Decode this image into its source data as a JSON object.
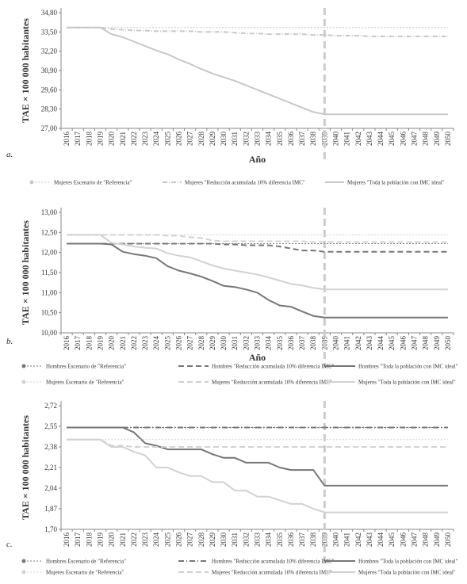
{
  "chart_data": [
    {
      "type": "line",
      "panel_label": "a.",
      "xlabel": "Año",
      "ylabel": "TAE × 100 000 habitantes",
      "ylim": [
        27.0,
        34.8
      ],
      "yticks": [
        "34,80",
        "33,50",
        "32,20",
        "30,90",
        "29,60",
        "28,30",
        "27,00"
      ],
      "ytick_values": [
        34.8,
        33.5,
        32.2,
        30.9,
        29.6,
        28.3,
        27.0
      ],
      "x": [
        "2016",
        "2017",
        "2018",
        "2019",
        "2020",
        "2021",
        "2022",
        "2023",
        "2024",
        "2025",
        "2026",
        "2027",
        "2028",
        "2029",
        "2030",
        "2031",
        "2032",
        "2033",
        "2034",
        "2035",
        "2036",
        "2037",
        "2038",
        "2039",
        "2040",
        "2041",
        "2042",
        "2043",
        "2044",
        "2045",
        "2046",
        "2047",
        "2048",
        "2049",
        "2050"
      ],
      "marker_year": "2039",
      "legend_position": "bottom",
      "series": [
        {
          "name": "Mujeres Escenario de \"Referencia\"",
          "color": "#c8c8c8",
          "dash": "2,2",
          "width": 1,
          "values": [
            33.8,
            33.8,
            33.8,
            33.8,
            33.8,
            33.8,
            33.8,
            33.8,
            33.8,
            33.8,
            33.8,
            33.8,
            33.8,
            33.8,
            33.8,
            33.8,
            33.8,
            33.8,
            33.8,
            33.8,
            33.8,
            33.8,
            33.8,
            33.8,
            33.8,
            33.8,
            33.8,
            33.8,
            33.8,
            33.8,
            33.8,
            33.8,
            33.8,
            33.8,
            33.8
          ]
        },
        {
          "name": "Mujeres \"Reducción acumulada 10% diferencia IMC\"",
          "color": "#c8c8c8",
          "dash": "6,2,1,2",
          "width": 2,
          "values": [
            33.8,
            33.8,
            33.8,
            33.8,
            33.7,
            33.65,
            33.6,
            33.6,
            33.55,
            33.55,
            33.55,
            33.55,
            33.5,
            33.5,
            33.5,
            33.45,
            33.4,
            33.4,
            33.35,
            33.35,
            33.35,
            33.35,
            33.3,
            33.3,
            33.25,
            33.25,
            33.25,
            33.2,
            33.2,
            33.2,
            33.2,
            33.2,
            33.2,
            33.2,
            33.2
          ]
        },
        {
          "name": "Mujeres \"Toda la población con IMC ideal\"",
          "color": "#c8c8c8",
          "dash": "",
          "width": 2,
          "values": [
            33.8,
            33.8,
            33.8,
            33.8,
            33.35,
            33.15,
            32.85,
            32.55,
            32.25,
            32.0,
            31.65,
            31.35,
            31.0,
            30.7,
            30.45,
            30.2,
            29.9,
            29.6,
            29.3,
            29.0,
            28.7,
            28.4,
            28.1,
            27.95,
            27.95,
            27.95,
            27.95,
            27.95,
            27.95,
            27.95,
            27.95,
            27.95,
            27.95,
            27.95,
            27.95
          ]
        }
      ]
    },
    {
      "type": "line",
      "panel_label": "b.",
      "xlabel": "Año",
      "ylabel": "TAE × 100 000 habitantes",
      "ylim": [
        10.0,
        13.0
      ],
      "yticks": [
        "13,00",
        "12,50",
        "12,00",
        "11,50",
        "11,00",
        "10,50",
        "10,00"
      ],
      "ytick_values": [
        13.0,
        12.5,
        12.0,
        11.5,
        11.0,
        10.5,
        10.0
      ],
      "x": [
        "2016",
        "2017",
        "2018",
        "2019",
        "2020",
        "2021",
        "2022",
        "2023",
        "2024",
        "2025",
        "2026",
        "2027",
        "2028",
        "2029",
        "2030",
        "2031",
        "2032",
        "2033",
        "2034",
        "2035",
        "2036",
        "2037",
        "2038",
        "2039",
        "2040",
        "2041",
        "2042",
        "2043",
        "2044",
        "2045",
        "2046",
        "2047",
        "2048",
        "2049",
        "2050"
      ],
      "marker_year": "2039",
      "legend_position": "bottom",
      "series": [
        {
          "name": "Hombres Escenario de \"Referencia\"",
          "color": "#777777",
          "dash": "2,2",
          "width": 1,
          "values": [
            12.22,
            12.22,
            12.22,
            12.22,
            12.22,
            12.22,
            12.22,
            12.22,
            12.22,
            12.22,
            12.22,
            12.22,
            12.22,
            12.22,
            12.22,
            12.22,
            12.22,
            12.22,
            12.22,
            12.22,
            12.22,
            12.22,
            12.22,
            12.22,
            12.22,
            12.22,
            12.22,
            12.22,
            12.22,
            12.22,
            12.22,
            12.22,
            12.22,
            12.22,
            12.22
          ]
        },
        {
          "name": "Hombres \"Reducción acumulada 10% diferencia IMC\"",
          "color": "#777777",
          "dash": "7,4",
          "width": 2,
          "values": [
            12.22,
            12.22,
            12.22,
            12.22,
            12.22,
            12.22,
            12.22,
            12.22,
            12.22,
            12.22,
            12.22,
            12.22,
            12.22,
            12.22,
            12.2,
            12.2,
            12.18,
            12.18,
            12.18,
            12.15,
            12.1,
            12.05,
            12.05,
            12.02,
            12.02,
            12.02,
            12.02,
            12.02,
            12.02,
            12.02,
            12.02,
            12.02,
            12.02,
            12.02,
            12.02
          ]
        },
        {
          "name": "Hombres \"Toda la población con IMC ideal\"",
          "color": "#777777",
          "dash": "",
          "width": 2,
          "values": [
            12.22,
            12.22,
            12.22,
            12.22,
            12.2,
            12.02,
            11.96,
            11.92,
            11.86,
            11.66,
            11.55,
            11.48,
            11.4,
            11.29,
            11.17,
            11.14,
            11.08,
            11.0,
            10.82,
            10.68,
            10.65,
            10.53,
            10.42,
            10.38,
            10.38,
            10.38,
            10.38,
            10.38,
            10.38,
            10.38,
            10.38,
            10.38,
            10.38,
            10.38,
            10.38
          ]
        },
        {
          "name": "Mujeres Escenario de \"Referencia\"",
          "color": "#d2d2d2",
          "dash": "2,2",
          "width": 1,
          "values": [
            12.44,
            12.44,
            12.44,
            12.44,
            12.44,
            12.44,
            12.44,
            12.44,
            12.44,
            12.44,
            12.44,
            12.44,
            12.44,
            12.44,
            12.44,
            12.44,
            12.44,
            12.44,
            12.44,
            12.44,
            12.44,
            12.44,
            12.44,
            12.44,
            12.44,
            12.44,
            12.44,
            12.44,
            12.44,
            12.44,
            12.44,
            12.44,
            12.44,
            12.44,
            12.44
          ]
        },
        {
          "name": "Mujeres \"Reducción acumulada 10% diferencia IMC\"",
          "color": "#d2d2d2",
          "dash": "7,4",
          "width": 2,
          "values": [
            12.44,
            12.44,
            12.44,
            12.44,
            12.44,
            12.44,
            12.44,
            12.44,
            12.44,
            12.42,
            12.42,
            12.38,
            12.36,
            12.3,
            12.28,
            12.28,
            12.28,
            12.28,
            12.28,
            12.28,
            12.28,
            12.28,
            12.26,
            12.26,
            12.26,
            12.26,
            12.26,
            12.26,
            12.26,
            12.26,
            12.26,
            12.26,
            12.26,
            12.26,
            12.26
          ]
        },
        {
          "name": "Mujeres \"Toda la población con IMC ideal\"",
          "color": "#d2d2d2",
          "dash": "",
          "width": 2,
          "values": [
            12.44,
            12.44,
            12.44,
            12.44,
            12.24,
            12.2,
            12.15,
            12.12,
            12.1,
            11.98,
            11.92,
            11.88,
            11.78,
            11.68,
            11.6,
            11.55,
            11.5,
            11.45,
            11.38,
            11.3,
            11.22,
            11.18,
            11.12,
            11.08,
            11.08,
            11.08,
            11.08,
            11.08,
            11.08,
            11.08,
            11.08,
            11.08,
            11.08,
            11.08,
            11.08
          ]
        }
      ]
    },
    {
      "type": "line",
      "panel_label": "c.",
      "xlabel": "",
      "ylabel": "TAE × 100 000 habitantes",
      "ylim": [
        1.7,
        2.72
      ],
      "yticks": [
        "2,72",
        "2,55",
        "2,38",
        "2,21",
        "2,04",
        "1,87",
        "1,70"
      ],
      "ytick_values": [
        2.72,
        2.55,
        2.38,
        2.21,
        2.04,
        1.87,
        1.7
      ],
      "x": [
        "2016",
        "2017",
        "2018",
        "2019",
        "2020",
        "2021",
        "2022",
        "2023",
        "2024",
        "2025",
        "2026",
        "2027",
        "2028",
        "2029",
        "2030",
        "2031",
        "2032",
        "2033",
        "2034",
        "2035",
        "2036",
        "2037",
        "2038",
        "2039",
        "2040",
        "2041",
        "2042",
        "2043",
        "2044",
        "2045",
        "2046",
        "2047",
        "2048",
        "2049",
        "2050"
      ],
      "marker_year": "2039",
      "legend_position": "bottom",
      "series": [
        {
          "name": "Hombres Escenario de \"Referencia\"",
          "color": "#777777",
          "dash": "2,2",
          "width": 1,
          "values": [
            2.54,
            2.54,
            2.54,
            2.54,
            2.54,
            2.54,
            2.54,
            2.54,
            2.54,
            2.54,
            2.54,
            2.54,
            2.54,
            2.54,
            2.54,
            2.54,
            2.54,
            2.54,
            2.54,
            2.54,
            2.54,
            2.54,
            2.54,
            2.54,
            2.54,
            2.54,
            2.54,
            2.54,
            2.54,
            2.54,
            2.54,
            2.54,
            2.54,
            2.54,
            2.54
          ]
        },
        {
          "name": "Hombres \"Reducción acumulada 10% diferencia IMC\"",
          "color": "#777777",
          "dash": "7,3,1,3",
          "width": 2,
          "values": [
            2.54,
            2.54,
            2.54,
            2.54,
            2.54,
            2.54,
            2.54,
            2.54,
            2.54,
            2.54,
            2.54,
            2.54,
            2.54,
            2.54,
            2.54,
            2.54,
            2.54,
            2.54,
            2.54,
            2.54,
            2.54,
            2.54,
            2.54,
            2.54,
            2.54,
            2.54,
            2.54,
            2.54,
            2.54,
            2.54,
            2.54,
            2.54,
            2.54,
            2.54,
            2.54
          ]
        },
        {
          "name": "Hombres \"Toda la población con IMC ideal\"",
          "color": "#777777",
          "dash": "",
          "width": 2,
          "values": [
            2.54,
            2.54,
            2.54,
            2.54,
            2.54,
            2.54,
            2.5,
            2.41,
            2.39,
            2.36,
            2.36,
            2.36,
            2.36,
            2.32,
            2.29,
            2.29,
            2.25,
            2.25,
            2.25,
            2.21,
            2.19,
            2.19,
            2.19,
            2.06,
            2.06,
            2.06,
            2.06,
            2.06,
            2.06,
            2.06,
            2.06,
            2.06,
            2.06,
            2.06,
            2.06
          ]
        },
        {
          "name": "Mujeres Escenario de \"Referencia\"",
          "color": "#d2d2d2",
          "dash": "2,2",
          "width": 1,
          "values": [
            2.44,
            2.44,
            2.44,
            2.44,
            2.44,
            2.44,
            2.44,
            2.44,
            2.44,
            2.44,
            2.44,
            2.44,
            2.44,
            2.44,
            2.44,
            2.44,
            2.44,
            2.44,
            2.44,
            2.44,
            2.44,
            2.44,
            2.44,
            2.44,
            2.44,
            2.44,
            2.44,
            2.44,
            2.44,
            2.44,
            2.44,
            2.44,
            2.44,
            2.44,
            2.44
          ]
        },
        {
          "name": "Mujeres \"Reducción acumulada 10% diferencia IMC\"",
          "color": "#d2d2d2",
          "dash": "7,4",
          "width": 2,
          "values": [
            2.44,
            2.44,
            2.44,
            2.44,
            2.39,
            2.39,
            2.38,
            2.38,
            2.38,
            2.38,
            2.38,
            2.38,
            2.38,
            2.38,
            2.38,
            2.38,
            2.38,
            2.38,
            2.38,
            2.38,
            2.38,
            2.38,
            2.38,
            2.38,
            2.38,
            2.38,
            2.38,
            2.38,
            2.38,
            2.38,
            2.38,
            2.38,
            2.38,
            2.38,
            2.38
          ]
        },
        {
          "name": "Mujeres \"Toda la población con IMC ideal\"",
          "color": "#d2d2d2",
          "dash": "",
          "width": 2,
          "values": [
            2.44,
            2.44,
            2.44,
            2.44,
            2.38,
            2.38,
            2.34,
            2.31,
            2.21,
            2.21,
            2.17,
            2.14,
            2.14,
            2.09,
            2.09,
            2.02,
            2.02,
            1.97,
            1.97,
            1.94,
            1.91,
            1.91,
            1.87,
            1.84,
            1.84,
            1.84,
            1.84,
            1.84,
            1.84,
            1.84,
            1.84,
            1.84,
            1.84,
            1.84,
            1.84
          ]
        }
      ]
    }
  ]
}
